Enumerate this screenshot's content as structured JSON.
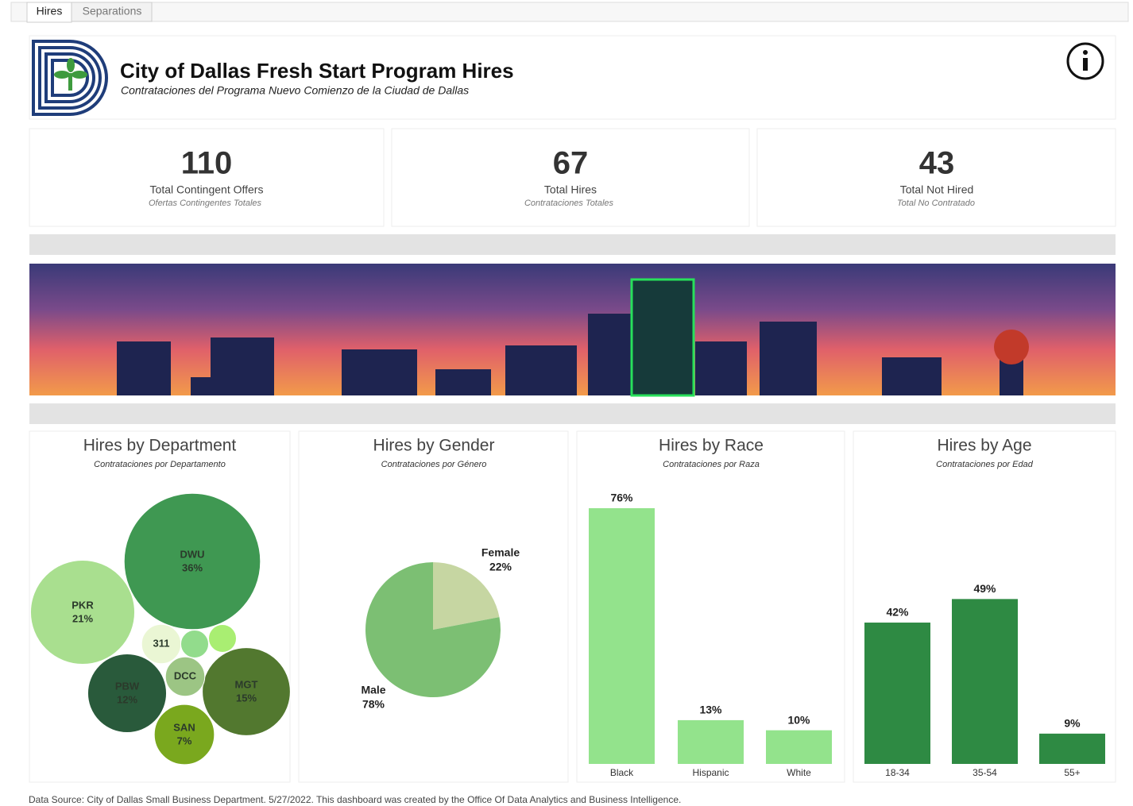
{
  "tabs": [
    "Hires",
    "Separations"
  ],
  "header": {
    "title": "City of Dallas Fresh Start Program Hires",
    "subtitle": "Contrataciones del Programa Nuevo Comienzo de la Ciudad de Dallas"
  },
  "kpis": [
    {
      "value": "110",
      "label": "Total Contingent Offers",
      "sublabel": "Ofertas Contingentes Totales"
    },
    {
      "value": "67",
      "label": "Total Hires",
      "sublabel": "Contrataciones Totales"
    },
    {
      "value": "43",
      "label": "Total Not Hired",
      "sublabel": "Total No Contratado"
    }
  ],
  "chart_data": [
    {
      "type": "bubble",
      "title": "Hires by Department",
      "subtitle": "Contrataciones por Departamento",
      "categories": [
        "DWU",
        "PKR",
        "MGT",
        "PBW",
        "SAN",
        "DCC",
        "311",
        null,
        null
      ],
      "values": [
        36,
        21,
        15,
        12,
        7,
        3,
        3,
        1.5,
        1.5
      ],
      "value_labels": [
        "36%",
        "21%",
        "15%",
        "12%",
        "7%",
        null,
        null,
        null,
        null
      ],
      "colors": [
        "#3f9852",
        "#a9df8f",
        "#52782f",
        "#295a3b",
        "#7aa81e",
        "#9cc584",
        "#eaf6d4",
        "#92dc8c",
        "#a9ee72"
      ]
    },
    {
      "type": "pie",
      "title": "Hires by Gender",
      "subtitle": "Contrataciones por Género",
      "categories": [
        "Female",
        "Male"
      ],
      "values": [
        22,
        78
      ],
      "value_labels": [
        "22%",
        "78%"
      ],
      "colors": [
        "#c6d6a2",
        "#7cbf73"
      ]
    },
    {
      "type": "bar",
      "title": "Hires by Race",
      "subtitle": "Contrataciones por Raza",
      "categories": [
        "Black",
        "Hispanic",
        "White"
      ],
      "values": [
        76,
        13,
        10
      ],
      "value_labels": [
        "76%",
        "13%",
        "10%"
      ],
      "color": "#93e38c",
      "ylim": [
        0,
        80
      ]
    },
    {
      "type": "bar",
      "title": "Hires by Age",
      "subtitle": "Contrataciones por Edad",
      "categories": [
        "18-34",
        "35-54",
        "55+"
      ],
      "values": [
        42,
        49,
        9
      ],
      "value_labels": [
        "42%",
        "49%",
        "9%"
      ],
      "color": "#2e8a43",
      "ylim": [
        0,
        80
      ]
    }
  ],
  "footer": "Data Source: City of Dallas Small Business Department. 5/27/2022. This dashboard was created by the Office Of Data Analytics and Business Intelligence."
}
